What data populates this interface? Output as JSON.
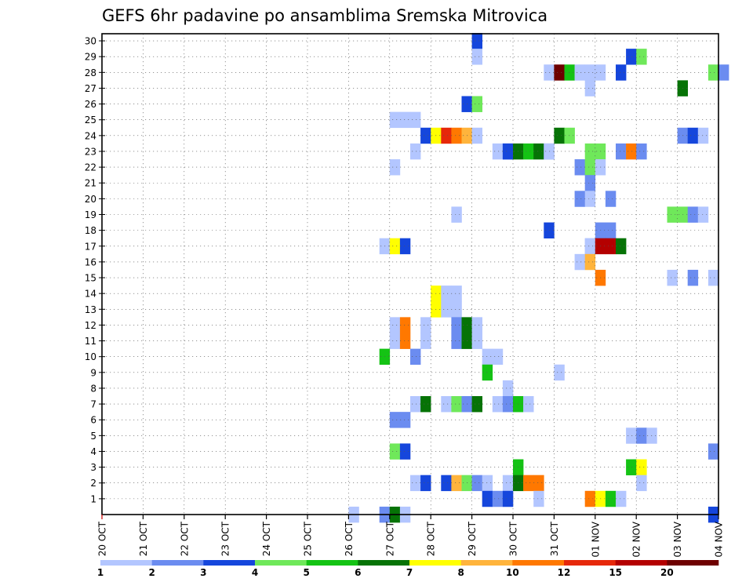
{
  "chart_data": {
    "type": "heatmap",
    "title": "GEFS 6hr padavine po ansamblima Sremska Mitrovica",
    "xlabel": "",
    "ylabel": "",
    "x_ticks": [
      "20 OCT",
      "21 OCT",
      "22 OCT",
      "23 OCT",
      "24 OCT",
      "25 OCT",
      "26 OCT",
      "27 OCT",
      "28 OCT",
      "29 OCT",
      "30 OCT",
      "31 OCT",
      "01 NOV",
      "02 NOV",
      "03 NOV",
      "04 NOV"
    ],
    "y_ticks": [
      "1",
      "2",
      "3",
      "4",
      "5",
      "6",
      "7",
      "8",
      "9",
      "10",
      "11",
      "12",
      "13",
      "14",
      "15",
      "16",
      "17",
      "18",
      "19",
      "20",
      "21",
      "22",
      "23",
      "24",
      "25",
      "26",
      "27",
      "28",
      "29",
      "30"
    ],
    "x_range": [
      "20 OCT",
      "04 NOV"
    ],
    "y_range": [
      0,
      30
    ],
    "time_step_hours": 6,
    "grid": true,
    "colorbar": {
      "placement": "bottom",
      "labels": [
        "1",
        "2",
        "3",
        "4",
        "5",
        "6",
        "7",
        "8",
        "10",
        "12",
        "15",
        "20"
      ],
      "colors": [
        "#b3c6ff",
        "#6b8cf0",
        "#1546dc",
        "#6fe85a",
        "#14c314",
        "#067306",
        "#ffff00",
        "#ffb43c",
        "#ff7800",
        "#e6280a",
        "#b40000",
        "#6e0000"
      ]
    },
    "cells": [
      [
        30,
        "29 OCT",
        0,
        2
      ],
      [
        29,
        "29 OCT",
        0,
        0
      ],
      [
        29,
        "02 NOV",
        -1,
        2
      ],
      [
        29,
        "02 NOV",
        0,
        3
      ],
      [
        28,
        "31 OCT",
        -1,
        0
      ],
      [
        28,
        "31 OCT",
        0,
        11
      ],
      [
        28,
        "31 OCT",
        1,
        4
      ],
      [
        28,
        "31 OCT",
        2,
        0
      ],
      [
        28,
        "31 OCT",
        3,
        0
      ],
      [
        28,
        "01 NOV",
        0,
        0
      ],
      [
        28,
        "01 NOV",
        2,
        2
      ],
      [
        28,
        "04 NOV",
        -1,
        3
      ],
      [
        28,
        "04 NOV",
        0,
        1
      ],
      [
        27,
        "01 NOV",
        -1,
        0
      ],
      [
        27,
        "03 NOV",
        0,
        5
      ],
      [
        26,
        "28 OCT",
        3,
        2
      ],
      [
        26,
        "29 OCT",
        0,
        3
      ],
      [
        25,
        "27 OCT",
        0,
        0
      ],
      [
        25,
        "27 OCT",
        1,
        0
      ],
      [
        25,
        "27 OCT",
        2,
        0
      ],
      [
        24,
        "28 OCT",
        -1,
        2
      ],
      [
        24,
        "28 OCT",
        0,
        6
      ],
      [
        24,
        "28 OCT",
        1,
        9
      ],
      [
        24,
        "28 OCT",
        2,
        8
      ],
      [
        24,
        "29 OCT",
        -1,
        7
      ],
      [
        24,
        "29 OCT",
        0,
        0
      ],
      [
        24,
        "31 OCT",
        0,
        5
      ],
      [
        24,
        "31 OCT",
        1,
        3
      ],
      [
        24,
        "03 NOV",
        0,
        1
      ],
      [
        24,
        "03 NOV",
        1,
        2
      ],
      [
        24,
        "03 NOV",
        2,
        0
      ],
      [
        23,
        "27 OCT",
        2,
        0
      ],
      [
        23,
        "29 OCT",
        2,
        0
      ],
      [
        23,
        "29 OCT",
        3,
        1
      ],
      [
        23,
        "30 OCT",
        -1,
        2
      ],
      [
        23,
        "30 OCT",
        0,
        5
      ],
      [
        23,
        "30 OCT",
        1,
        4
      ],
      [
        23,
        "30 OCT",
        2,
        5
      ],
      [
        23,
        "30 OCT",
        3,
        1
      ],
      [
        23,
        "31 OCT",
        -1,
        0
      ],
      [
        23,
        "01 NOV",
        -1,
        3
      ],
      [
        23,
        "01 NOV",
        0,
        3
      ],
      [
        23,
        "01 NOV",
        2,
        1
      ],
      [
        23,
        "02 NOV",
        -1,
        8
      ],
      [
        23,
        "02 NOV",
        0,
        1
      ],
      [
        22,
        "27 OCT",
        0,
        0
      ],
      [
        22,
        "31 OCT",
        2,
        1
      ],
      [
        22,
        "01 NOV",
        -1,
        3
      ],
      [
        22,
        "01 NOV",
        0,
        0
      ],
      [
        21,
        "01 NOV",
        -1,
        1
      ],
      [
        20,
        "31 OCT",
        2,
        1
      ],
      [
        20,
        "01 NOV",
        -1,
        0
      ],
      [
        20,
        "01 NOV",
        1,
        1
      ],
      [
        19,
        "28 OCT",
        2,
        0
      ],
      [
        19,
        "03 NOV",
        -1,
        3
      ],
      [
        19,
        "03 NOV",
        0,
        3
      ],
      [
        19,
        "03 NOV",
        1,
        1
      ],
      [
        19,
        "03 NOV",
        2,
        0
      ],
      [
        18,
        "31 OCT",
        -1,
        2
      ],
      [
        18,
        "01 NOV",
        0,
        1
      ],
      [
        18,
        "01 NOV",
        1,
        1
      ],
      [
        17,
        "27 OCT",
        -1,
        0
      ],
      [
        17,
        "27 OCT",
        0,
        6
      ],
      [
        17,
        "27 OCT",
        1,
        2
      ],
      [
        17,
        "01 NOV",
        -1,
        0
      ],
      [
        17,
        "01 NOV",
        -1,
        0
      ],
      [
        17,
        "01 NOV",
        0,
        10
      ],
      [
        17,
        "01 NOV",
        1,
        10
      ],
      [
        17,
        "01 NOV",
        2,
        5
      ],
      [
        16,
        "01 NOV",
        -2,
        0
      ],
      [
        16,
        "01 NOV",
        -1,
        7
      ],
      [
        15,
        "01 NOV",
        0,
        8
      ],
      [
        15,
        "03 NOV",
        -1,
        0
      ],
      [
        15,
        "03 NOV",
        1,
        1
      ],
      [
        15,
        "04 NOV",
        -1,
        0
      ],
      [
        14,
        "28 OCT",
        0,
        6
      ],
      [
        14,
        "28 OCT",
        1,
        0
      ],
      [
        14,
        "28 OCT",
        2,
        0
      ],
      [
        13,
        "28 OCT",
        0,
        6
      ],
      [
        13,
        "28 OCT",
        1,
        0
      ],
      [
        13,
        "28 OCT",
        2,
        0
      ],
      [
        12,
        "27 OCT",
        0,
        0
      ],
      [
        12,
        "27 OCT",
        1,
        8
      ],
      [
        12,
        "27 OCT",
        3,
        0
      ],
      [
        12,
        "28 OCT",
        2,
        1
      ],
      [
        12,
        "28 OCT",
        3,
        5
      ],
      [
        12,
        "29 OCT",
        0,
        0
      ],
      [
        11,
        "27 OCT",
        0,
        0
      ],
      [
        11,
        "27 OCT",
        1,
        8
      ],
      [
        11,
        "27 OCT",
        3,
        0
      ],
      [
        11,
        "28 OCT",
        2,
        1
      ],
      [
        11,
        "28 OCT",
        3,
        5
      ],
      [
        11,
        "29 OCT",
        0,
        0
      ],
      [
        10,
        "26 OCT",
        3,
        4
      ],
      [
        10,
        "27 OCT",
        2,
        1
      ],
      [
        10,
        "29 OCT",
        1,
        0
      ],
      [
        10,
        "29 OCT",
        2,
        0
      ],
      [
        9,
        "29 OCT",
        1,
        4
      ],
      [
        9,
        "31 OCT",
        0,
        0
      ],
      [
        8,
        "29 OCT",
        3,
        0
      ],
      [
        7,
        "27 OCT",
        2,
        0
      ],
      [
        7,
        "27 OCT",
        3,
        5
      ],
      [
        7,
        "28 OCT",
        1,
        0
      ],
      [
        7,
        "28 OCT",
        2,
        3
      ],
      [
        7,
        "28 OCT",
        3,
        1
      ],
      [
        7,
        "29 OCT",
        0,
        5
      ],
      [
        7,
        "29 OCT",
        2,
        0
      ],
      [
        7,
        "29 OCT",
        3,
        1
      ],
      [
        7,
        "30 OCT",
        0,
        4
      ],
      [
        7,
        "30 OCT",
        1,
        0
      ],
      [
        6,
        "27 OCT",
        0,
        1
      ],
      [
        6,
        "27 OCT",
        1,
        1
      ],
      [
        5,
        "02 NOV",
        -1,
        0
      ],
      [
        5,
        "02 NOV",
        0,
        1
      ],
      [
        5,
        "02 NOV",
        1,
        0
      ],
      [
        4,
        "27 OCT",
        0,
        3
      ],
      [
        4,
        "27 OCT",
        1,
        2
      ],
      [
        4,
        "04 NOV",
        -1,
        1
      ],
      [
        3,
        "30 OCT",
        0,
        4
      ],
      [
        3,
        "02 NOV",
        -1,
        4
      ],
      [
        3,
        "02 NOV",
        0,
        6
      ],
      [
        2,
        "27 OCT",
        2,
        0
      ],
      [
        2,
        "27 OCT",
        3,
        2
      ],
      [
        2,
        "28 OCT",
        1,
        2
      ],
      [
        2,
        "28 OCT",
        2,
        7
      ],
      [
        2,
        "28 OCT",
        3,
        3
      ],
      [
        2,
        "29 OCT",
        0,
        1
      ],
      [
        2,
        "29 OCT",
        1,
        0
      ],
      [
        2,
        "29 OCT",
        3,
        0
      ],
      [
        2,
        "30 OCT",
        0,
        5
      ],
      [
        2,
        "30 OCT",
        1,
        8
      ],
      [
        2,
        "30 OCT",
        2,
        8
      ],
      [
        2,
        "02 NOV",
        0,
        0
      ],
      [
        1,
        "29 OCT",
        1,
        2
      ],
      [
        1,
        "29 OCT",
        2,
        1
      ],
      [
        1,
        "29 OCT",
        3,
        2
      ],
      [
        1,
        "30 OCT",
        2,
        0
      ],
      [
        1,
        "01 NOV",
        -1,
        8
      ],
      [
        1,
        "01 NOV",
        0,
        6
      ],
      [
        1,
        "01 NOV",
        1,
        4
      ],
      [
        1,
        "01 NOV",
        2,
        0
      ],
      [
        0,
        "26 OCT",
        0,
        0
      ],
      [
        0,
        "26 OCT",
        3,
        1
      ],
      [
        0,
        "27 OCT",
        0,
        5
      ],
      [
        0,
        "27 OCT",
        1,
        0
      ],
      [
        0,
        "04 NOV",
        -1,
        2
      ]
    ]
  }
}
